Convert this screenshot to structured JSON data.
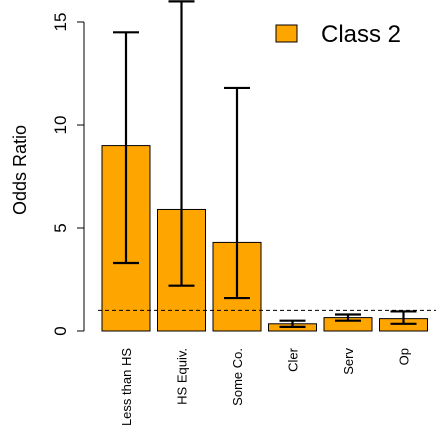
{
  "chart_data": {
    "type": "bar",
    "title": "",
    "ylabel": "Odds Ratio",
    "xlabel": "",
    "ylim": [
      0,
      15.8
    ],
    "yticks": [
      0,
      5,
      10,
      15
    ],
    "reference_line": 1,
    "grid": false,
    "legend_position": "top-right",
    "categories": [
      "Less than HS",
      "HS Equiv.",
      "Some Co.",
      "Cler",
      "Serv",
      "Op"
    ],
    "series": [
      {
        "name": "Class 2",
        "color": "#FFA500",
        "values": [
          9.0,
          5.9,
          4.3,
          0.35,
          0.65,
          0.6
        ],
        "ci_lower": [
          3.3,
          2.2,
          1.6,
          0.2,
          0.5,
          0.35
        ],
        "ci_upper": [
          14.5,
          16.0,
          11.8,
          0.5,
          0.8,
          0.95
        ]
      }
    ]
  }
}
